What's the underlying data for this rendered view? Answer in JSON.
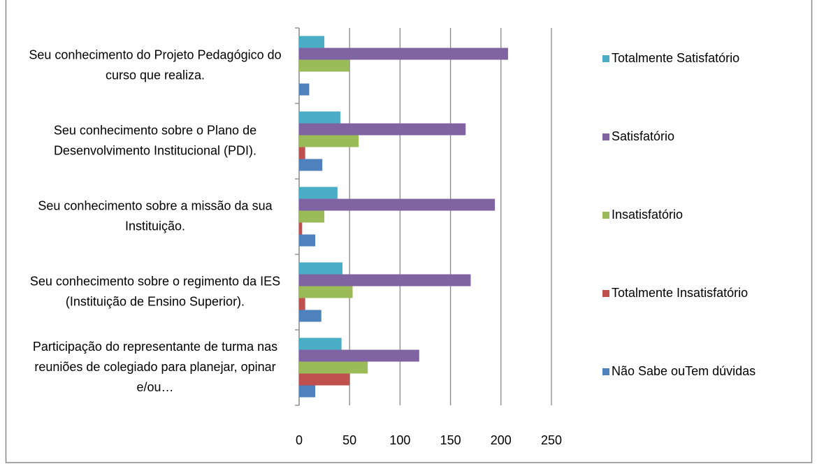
{
  "chart_data": {
    "type": "bar",
    "orientation": "horizontal",
    "categories": [
      "Seu conhecimento do Projeto Pedagógico do curso que realiza.",
      "Seu conhecimento sobre o Plano de Desenvolvimento Institucional (PDI).",
      "Seu conhecimento sobre a missão da sua Instituição.",
      "Seu conhecimento sobre o regimento da IES (Instituição de Ensino Superior).",
      "Participação do representante de turma nas reuniões de colegiado para planejar, opinar e/ou…"
    ],
    "series": [
      {
        "name": "Totalmente Satisfatório",
        "color": "#4bacc6",
        "values": [
          25,
          41,
          38,
          43,
          42
        ]
      },
      {
        "name": "Satisfatório",
        "color": "#8064a2",
        "values": [
          207,
          165,
          194,
          170,
          119
        ]
      },
      {
        "name": "Insatisfatório",
        "color": "#9bbb59",
        "values": [
          50,
          59,
          25,
          53,
          68
        ]
      },
      {
        "name": "Totalmente Insatisfatório",
        "color": "#c0504d",
        "values": [
          0,
          6,
          3,
          6,
          50
        ]
      },
      {
        "name": "Não Sabe ouTem dúvidas",
        "color": "#4f81bd",
        "values": [
          10,
          23,
          16,
          22,
          16
        ]
      }
    ],
    "xlim": [
      0,
      250
    ],
    "xticks": [
      0,
      50,
      100,
      150,
      200,
      250
    ],
    "grid": true,
    "legend": "right"
  }
}
